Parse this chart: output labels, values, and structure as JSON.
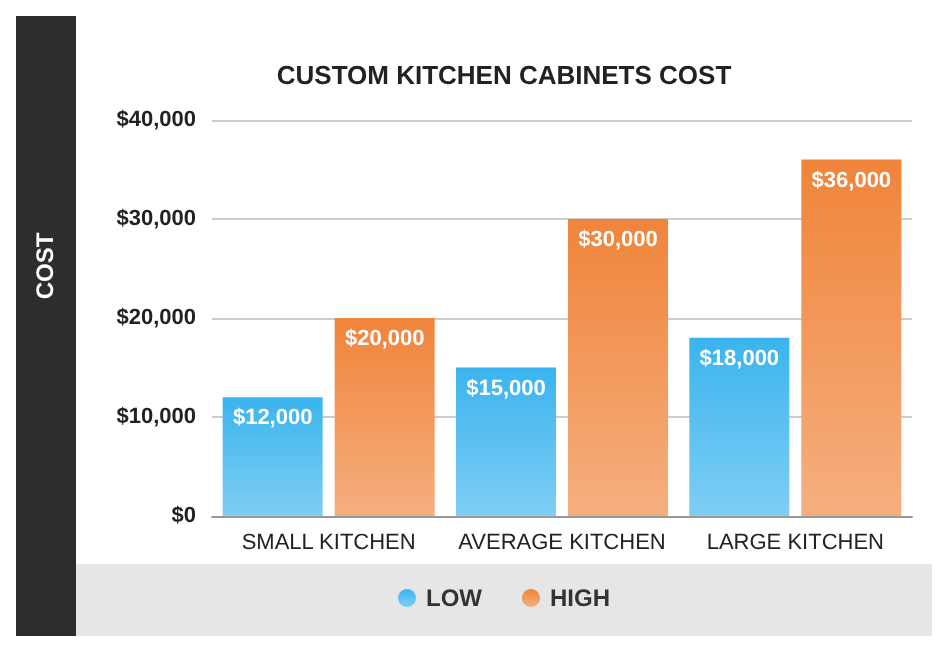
{
  "chart_data": {
    "type": "bar",
    "title": "CUSTOM KITCHEN CABINETS COST",
    "ylabel": "COST",
    "categories": [
      "SMALL KITCHEN",
      "AVERAGE KITCHEN",
      "LARGE KITCHEN"
    ],
    "series": [
      {
        "name": "LOW",
        "color": "#3ab4ee",
        "values": [
          12000,
          15000,
          18000
        ],
        "value_labels": [
          "$12,000",
          "$15,000",
          "$18,000"
        ]
      },
      {
        "name": "HIGH",
        "color": "#f0843a",
        "values": [
          20000,
          30000,
          36000
        ],
        "value_labels": [
          "$20,000",
          "$30,000",
          "$36,000"
        ]
      }
    ],
    "ylim": [
      0,
      40000
    ],
    "yticks": [
      {
        "value": 0,
        "label": "$0"
      },
      {
        "value": 10000,
        "label": "$10,000"
      },
      {
        "value": 20000,
        "label": "$20,000"
      },
      {
        "value": 30000,
        "label": "$30,000"
      },
      {
        "value": 40000,
        "label": "$40,000"
      }
    ],
    "grid": "y",
    "legend": "bottom"
  }
}
